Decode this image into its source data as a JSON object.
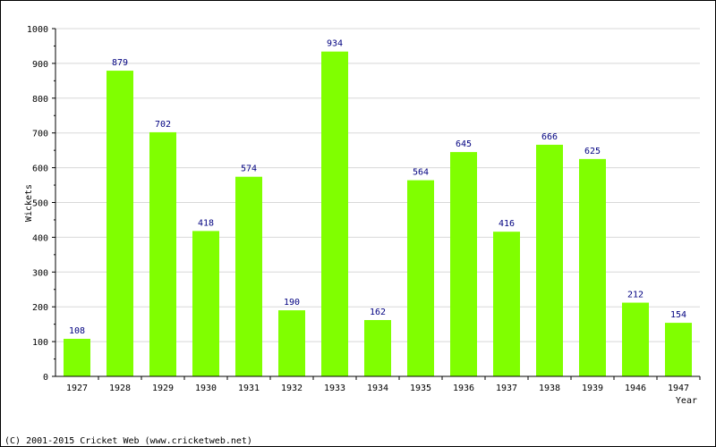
{
  "chart_data": {
    "type": "bar",
    "categories": [
      "1927",
      "1928",
      "1929",
      "1930",
      "1931",
      "1932",
      "1933",
      "1934",
      "1935",
      "1936",
      "1937",
      "1938",
      "1939",
      "1946",
      "1947"
    ],
    "values": [
      108,
      879,
      702,
      418,
      574,
      190,
      934,
      162,
      564,
      645,
      416,
      666,
      625,
      212,
      154
    ],
    "xlabel": "Year",
    "ylabel": "Wickets",
    "ylim": [
      0,
      1000
    ],
    "yticks": [
      0,
      100,
      200,
      300,
      400,
      500,
      600,
      700,
      800,
      900,
      1000
    ],
    "grid": true,
    "bar_color": "#80ff00",
    "label_color": "#000080",
    "grid_color": "#d8d8d8"
  },
  "footer": {
    "copyright": "(C) 2001-2015 Cricket Web (www.cricketweb.net)"
  }
}
